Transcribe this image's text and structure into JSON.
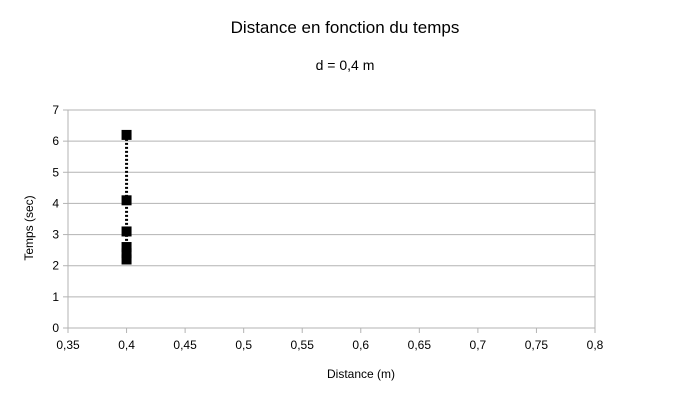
{
  "chart_data": {
    "type": "scatter",
    "title": "Distance en fonction du temps",
    "subtitle": "d = 0,4 m",
    "xlabel": "Distance (m)",
    "ylabel": "Temps (sec)",
    "xlim": [
      0.35,
      0.8
    ],
    "ylim": [
      0,
      7
    ],
    "xticks": [
      0.35,
      0.4,
      0.45,
      0.5,
      0.55,
      0.6,
      0.65,
      0.7,
      0.75,
      0.8
    ],
    "xtick_labels": [
      "0,35",
      "0,4",
      "0,45",
      "0,5",
      "0,55",
      "0,6",
      "0,65",
      "0,7",
      "0,75",
      "0,8"
    ],
    "yticks": [
      0,
      1,
      2,
      3,
      4,
      5,
      6,
      7
    ],
    "ytick_labels": [
      "0",
      "1",
      "2",
      "3",
      "4",
      "5",
      "6",
      "7"
    ],
    "grid": true,
    "legend": "none",
    "series": [
      {
        "x": [
          0.4,
          0.4,
          0.4,
          0.4,
          0.4,
          0.4
        ],
        "y": [
          6.2,
          4.1,
          3.1,
          2.6,
          2.4,
          2.2
        ],
        "marker": "square",
        "line": "dotted",
        "color": "#000000"
      }
    ]
  },
  "colors": {
    "grid": "#b3b3b3",
    "axis": "#b3b3b3",
    "marker": "#000000"
  }
}
